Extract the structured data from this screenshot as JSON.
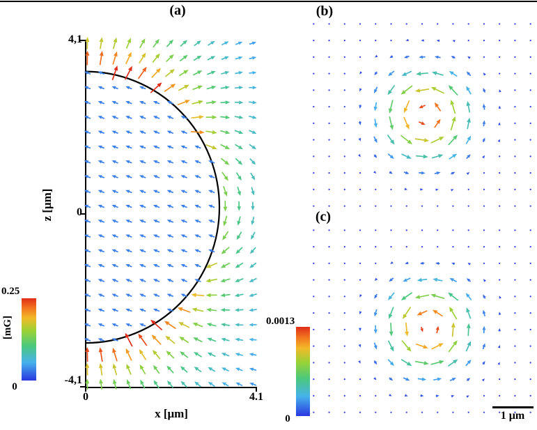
{
  "panels": {
    "a": {
      "label": "(a)",
      "xlabel": "x [μm]",
      "ylabel": "z [μm]",
      "x_ticks": [
        "0",
        "4.1"
      ],
      "y_ticks": [
        "4,1",
        "0",
        "-4,1"
      ]
    },
    "b": {
      "label": "(b)"
    },
    "c": {
      "label": "(c)"
    }
  },
  "colorbars": {
    "a": {
      "label": "[mG]",
      "min": "0",
      "max": "0.25"
    },
    "c": {
      "min": "0",
      "max": "0.0013"
    }
  },
  "scalebar": {
    "label": "1 μm"
  },
  "colormap": {
    "name": "jet",
    "stops": [
      [
        0.0,
        [
          42,
          55,
          225
        ]
      ],
      [
        0.22,
        [
          70,
          178,
          235
        ]
      ],
      [
        0.42,
        [
          75,
          200,
          125
        ]
      ],
      [
        0.6,
        [
          152,
          210,
          55
        ]
      ],
      [
        0.76,
        [
          242,
          185,
          40
        ]
      ],
      [
        0.88,
        [
          242,
          118,
          30
        ]
      ],
      [
        1.0,
        [
          224,
          45,
          25
        ]
      ]
    ]
  },
  "chart_data": [
    {
      "panel": "a",
      "type": "quiver",
      "title": "(a)",
      "xlabel": "x [μm]",
      "ylabel": "z [μm]",
      "xlim": [
        0,
        4.1
      ],
      "ylim": [
        -4.1,
        4.1
      ],
      "x_tick_labels": [
        "0",
        "4.1"
      ],
      "y_tick_labels": [
        "4,1",
        "0",
        "-4,1"
      ],
      "colorbar": {
        "label": "[mG]",
        "min": 0,
        "max": 0.25
      },
      "field_model": "dipole_around_sphere",
      "params": {
        "moment": 5,
        "sphere_center": [
          0,
          0.15
        ],
        "sphere_radius": 3.2,
        "interior_field": [
          -0.03,
          0.012
        ]
      },
      "grid": {
        "x0": 0.04,
        "x1": 4.0,
        "nx": 13,
        "y0": -4.02,
        "y1": 4.02,
        "ny": 24
      },
      "overlay": "semicircular sphere boundary centered on z-axis"
    },
    {
      "panel": "b",
      "type": "quiver",
      "title": "(b)",
      "xlim": [
        -3.02,
        3.02
      ],
      "ylim": [
        -2.55,
        2.55
      ],
      "field_model": "vortex",
      "params": {
        "center": [
          0.1,
          0.0
        ],
        "direction": "ccw",
        "ring_radius": 0.78,
        "color_sigma": 1.1,
        "max_len": 21
      },
      "grid": {
        "x0": -2.92,
        "x1": 2.92,
        "nx": 15,
        "y0": -2.45,
        "y1": 2.45,
        "ny": 12
      }
    },
    {
      "panel": "c",
      "type": "quiver",
      "title": "(c)",
      "xlim": [
        -3.02,
        3.02
      ],
      "ylim": [
        -2.55,
        2.55
      ],
      "colorbar": {
        "min": 0,
        "max": 0.0013
      },
      "scalebar": {
        "label": "1 μm",
        "microns": 1
      },
      "field_model": "vortex",
      "params": {
        "center": [
          0.17,
          -0.17
        ],
        "direction": "ccw",
        "ring_radius": 0.78,
        "color_sigma": 1.1,
        "max_len": 21
      },
      "grid": {
        "x0": -2.92,
        "x1": 2.92,
        "nx": 15,
        "y0": -2.45,
        "y1": 2.45,
        "ny": 12
      }
    }
  ]
}
